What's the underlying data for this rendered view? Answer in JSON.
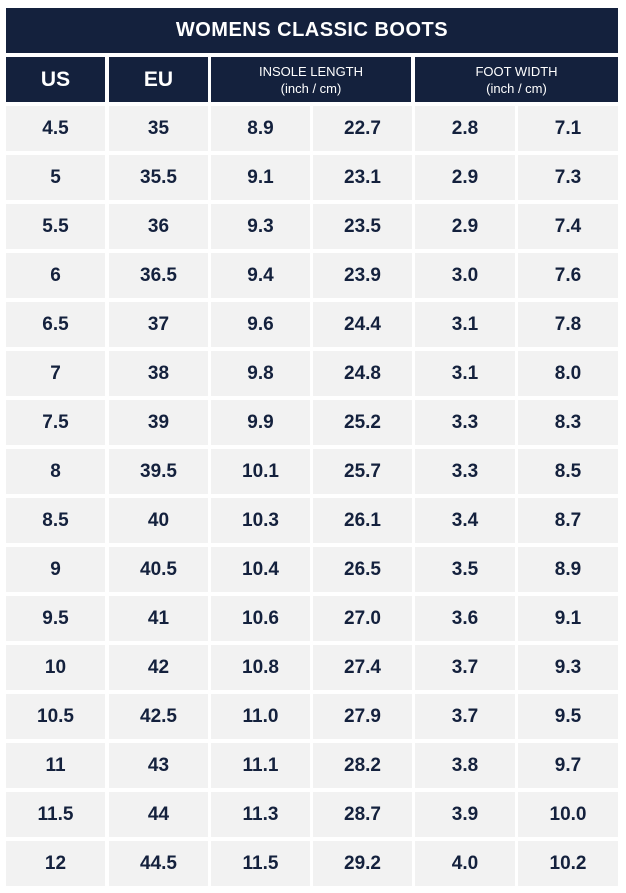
{
  "title": "WOMENS CLASSIC BOOTS",
  "headers": {
    "us": "US",
    "eu": "EU",
    "insole_title": "INSOLE LENGTH",
    "insole_units": "(inch / cm)",
    "width_title": "FOOT WIDTH",
    "width_units": "(inch / cm)"
  },
  "rows": [
    [
      "4.5",
      "35",
      "8.9",
      "22.7",
      "2.8",
      "7.1"
    ],
    [
      "5",
      "35.5",
      "9.1",
      "23.1",
      "2.9",
      "7.3"
    ],
    [
      "5.5",
      "36",
      "9.3",
      "23.5",
      "2.9",
      "7.4"
    ],
    [
      "6",
      "36.5",
      "9.4",
      "23.9",
      "3.0",
      "7.6"
    ],
    [
      "6.5",
      "37",
      "9.6",
      "24.4",
      "3.1",
      "7.8"
    ],
    [
      "7",
      "38",
      "9.8",
      "24.8",
      "3.1",
      "8.0"
    ],
    [
      "7.5",
      "39",
      "9.9",
      "25.2",
      "3.3",
      "8.3"
    ],
    [
      "8",
      "39.5",
      "10.1",
      "25.7",
      "3.3",
      "8.5"
    ],
    [
      "8.5",
      "40",
      "10.3",
      "26.1",
      "3.4",
      "8.7"
    ],
    [
      "9",
      "40.5",
      "10.4",
      "26.5",
      "3.5",
      "8.9"
    ],
    [
      "9.5",
      "41",
      "10.6",
      "27.0",
      "3.6",
      "9.1"
    ],
    [
      "10",
      "42",
      "10.8",
      "27.4",
      "3.7",
      "9.3"
    ],
    [
      "10.5",
      "42.5",
      "11.0",
      "27.9",
      "3.7",
      "9.5"
    ],
    [
      "11",
      "43",
      "11.1",
      "28.2",
      "3.8",
      "9.7"
    ],
    [
      "11.5",
      "44",
      "11.3",
      "28.7",
      "3.9",
      "10.0"
    ],
    [
      "12",
      "44.5",
      "11.5",
      "29.2",
      "4.0",
      "10.2"
    ]
  ],
  "colors": {
    "header_bg": "#14213d",
    "header_text": "#ffffff",
    "cell_bg": "#f2f2f2",
    "cell_text": "#14213d"
  }
}
